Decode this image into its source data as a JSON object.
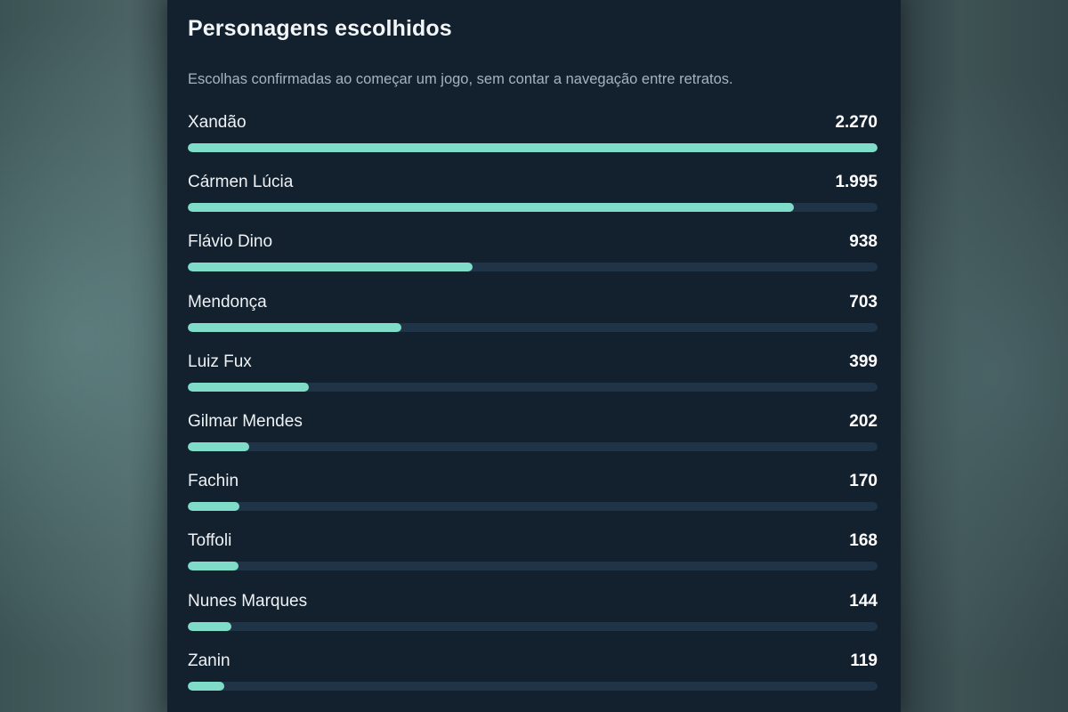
{
  "panel": {
    "title": "Personagens escolhidos",
    "subtitle": "Escolhas confirmadas ao começar um jogo, sem contar a navegação entre retratos."
  },
  "colors": {
    "bar_fill": "#7edcc8",
    "bar_track": "#1f3447",
    "panel_bg": "#13202e"
  },
  "chart_data": {
    "type": "bar",
    "orientation": "horizontal",
    "categories": [
      "Xandão",
      "Cármen Lúcia",
      "Flávio Dino",
      "Mendonça",
      "Luiz Fux",
      "Gilmar Mendes",
      "Fachin",
      "Toffoli",
      "Nunes Marques",
      "Zanin"
    ],
    "values": [
      2270,
      1995,
      938,
      703,
      399,
      202,
      170,
      168,
      144,
      119
    ],
    "value_labels": [
      "2.270",
      "1.995",
      "938",
      "703",
      "399",
      "202",
      "170",
      "168",
      "144",
      "119"
    ],
    "xlim": [
      0,
      2270
    ]
  }
}
